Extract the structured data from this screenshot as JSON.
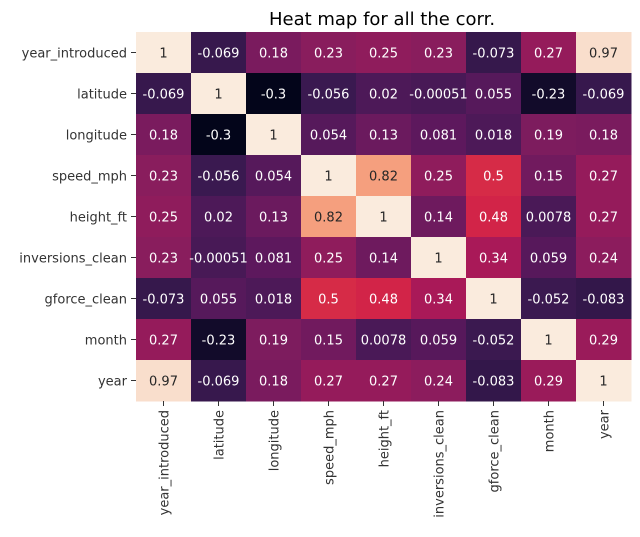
{
  "chart_data": {
    "type": "heatmap",
    "title": "Heat map for all the corr.",
    "xlabel": "",
    "ylabel": "",
    "rows": [
      "year_introduced",
      "latitude",
      "longitude",
      "speed_mph",
      "height_ft",
      "inversions_clean",
      "gforce_clean",
      "month",
      "year"
    ],
    "cols": [
      "year_introduced",
      "latitude",
      "longitude",
      "speed_mph",
      "height_ft",
      "inversions_clean",
      "gforce_clean",
      "month",
      "year"
    ],
    "values": [
      [
        1,
        -0.069,
        0.18,
        0.23,
        0.25,
        0.23,
        -0.073,
        0.27,
        0.97
      ],
      [
        -0.069,
        1,
        -0.3,
        -0.056,
        0.02,
        -0.00051,
        0.055,
        -0.23,
        -0.069
      ],
      [
        0.18,
        -0.3,
        1,
        0.054,
        0.13,
        0.081,
        0.018,
        0.19,
        0.18
      ],
      [
        0.23,
        -0.056,
        0.054,
        1,
        0.82,
        0.25,
        0.5,
        0.15,
        0.27
      ],
      [
        0.25,
        0.02,
        0.13,
        0.82,
        1,
        0.14,
        0.48,
        0.0078,
        0.27
      ],
      [
        0.23,
        -0.00051,
        0.081,
        0.25,
        0.14,
        1,
        0.34,
        0.059,
        0.24
      ],
      [
        -0.073,
        0.055,
        0.018,
        0.5,
        0.48,
        0.34,
        1,
        -0.052,
        -0.083
      ],
      [
        0.27,
        -0.23,
        0.19,
        0.15,
        0.0078,
        0.059,
        -0.052,
        1,
        0.29
      ],
      [
        0.97,
        -0.069,
        0.18,
        0.27,
        0.27,
        0.24,
        -0.083,
        0.29,
        1
      ]
    ],
    "labels": [
      [
        "1",
        "-0.069",
        "0.18",
        "0.23",
        "0.25",
        "0.23",
        "-0.073",
        "0.27",
        "0.97"
      ],
      [
        "-0.069",
        "1",
        "-0.3",
        "-0.056",
        "0.02",
        "-0.00051",
        "0.055",
        "-0.23",
        "-0.069"
      ],
      [
        "0.18",
        "-0.3",
        "1",
        "0.054",
        "0.13",
        "0.081",
        "0.018",
        "0.19",
        "0.18"
      ],
      [
        "0.23",
        "-0.056",
        "0.054",
        "1",
        "0.82",
        "0.25",
        "0.5",
        "0.15",
        "0.27"
      ],
      [
        "0.25",
        "0.02",
        "0.13",
        "0.82",
        "1",
        "0.14",
        "0.48",
        "0.0078",
        "0.27"
      ],
      [
        "0.23",
        "-0.00051",
        "0.081",
        "0.25",
        "0.14",
        "1",
        "0.34",
        "0.059",
        "0.24"
      ],
      [
        "-0.073",
        "0.055",
        "0.018",
        "0.5",
        "0.48",
        "0.34",
        "1",
        "-0.052",
        "-0.083"
      ],
      [
        "0.27",
        "-0.23",
        "0.19",
        "0.15",
        "0.0078",
        "0.059",
        "-0.052",
        "1",
        "0.29"
      ],
      [
        "0.97",
        "-0.069",
        "0.18",
        "0.27",
        "0.27",
        "0.24",
        "-0.083",
        "0.29",
        "1"
      ]
    ],
    "colormap": "rocket",
    "value_range": [
      -0.3,
      1
    ],
    "colorbar": false
  }
}
